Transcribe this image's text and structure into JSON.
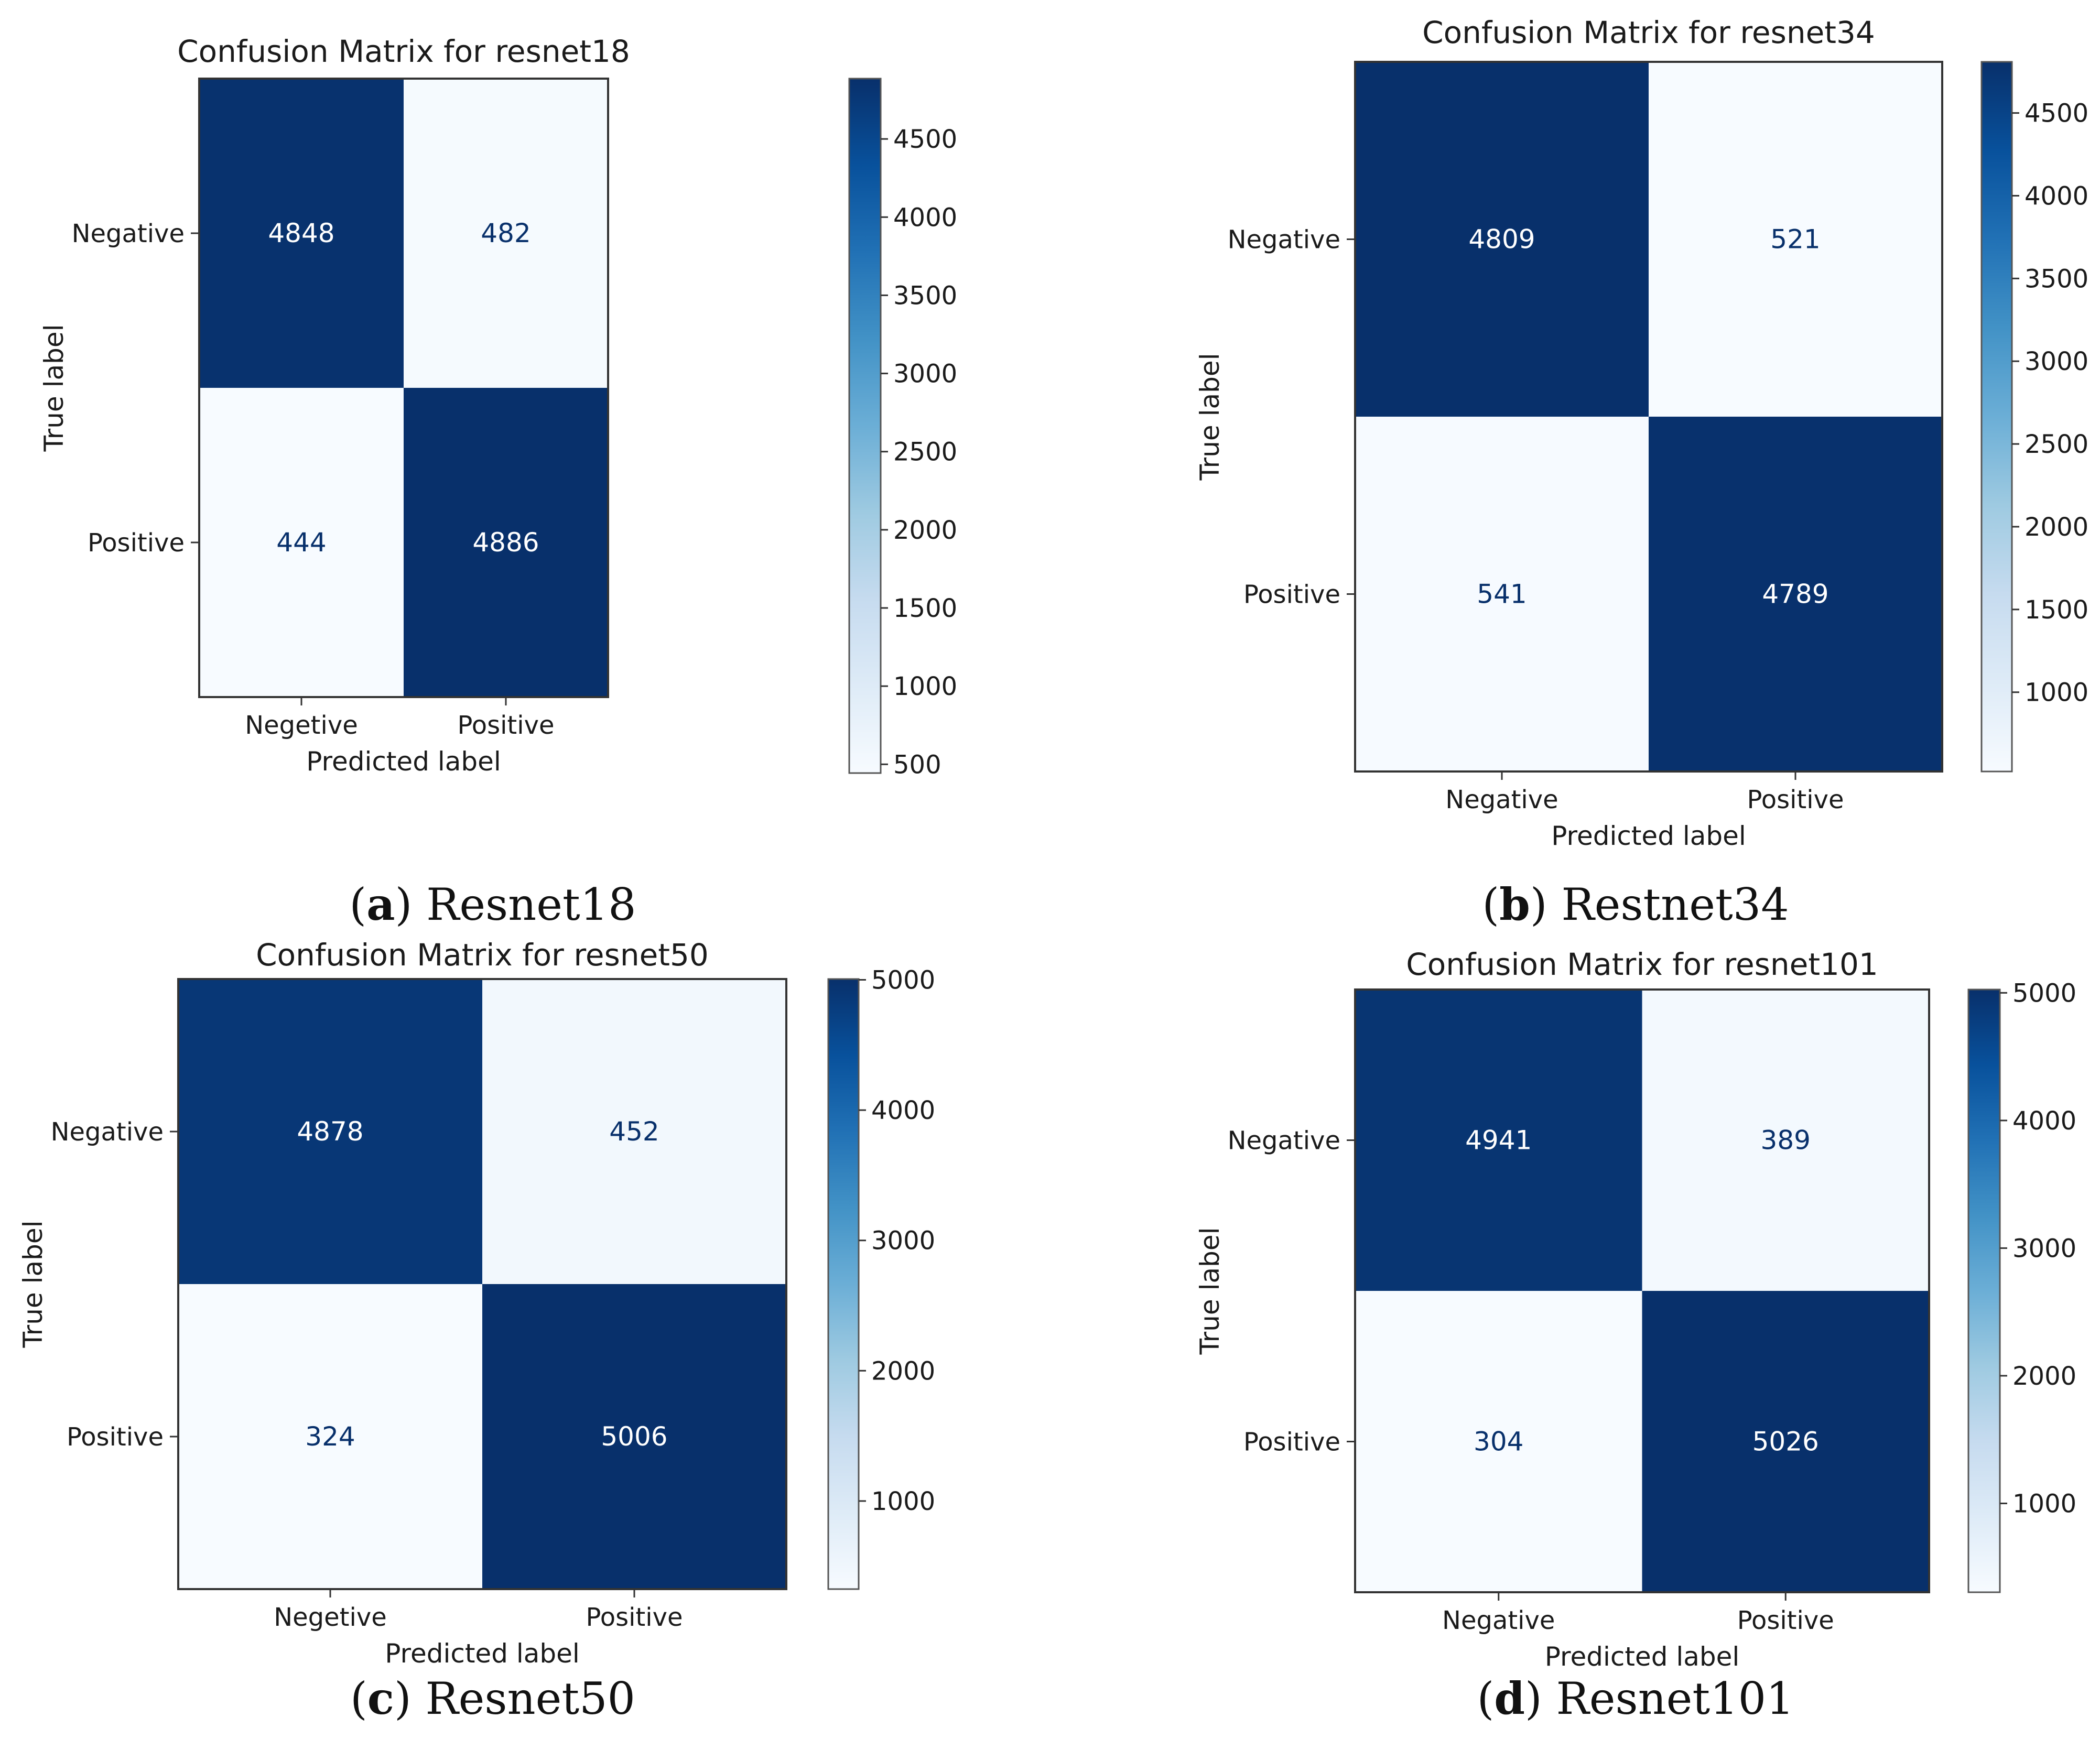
{
  "colors": {
    "dark": "#08306b",
    "light": "#f1f7fd",
    "text_on_dark": "#ffffff",
    "text_on_light": "#08306b",
    "colormap": [
      "#f7fbff",
      "#deebf7",
      "#c6dbef",
      "#9ecae1",
      "#6baed6",
      "#4292c6",
      "#2171b5",
      "#08519c",
      "#08306b"
    ]
  },
  "chart_data": [
    {
      "type": "heatmap",
      "title": "Confusion Matrix for resnet18",
      "xlabel": "Predicted label",
      "ylabel": "True label",
      "x_categories": [
        "Negetive",
        "Positive"
      ],
      "y_categories": [
        "Negative",
        "Positive"
      ],
      "values": [
        [
          4848,
          482
        ],
        [
          444,
          4886
        ]
      ],
      "cell_labels": [
        [
          "4848",
          "482"
        ],
        [
          "444",
          "4886"
        ]
      ],
      "colorbar": {
        "range": [
          444,
          4886
        ],
        "ticks": [
          "4500",
          "4000",
          "3500",
          "3000",
          "2500",
          "2000",
          "1500",
          "1000",
          "500"
        ],
        "tick_values": [
          4500,
          4000,
          3500,
          3000,
          2500,
          2000,
          1500,
          1000,
          500
        ]
      },
      "caption_letter": "a",
      "caption_text": "Resnet18"
    },
    {
      "type": "heatmap",
      "title": "Confusion Matrix for resnet34",
      "xlabel": "Predicted label",
      "ylabel": "True label",
      "x_categories": [
        "Negative",
        "Positive"
      ],
      "y_categories": [
        "Negative",
        "Positive"
      ],
      "values": [
        [
          4809,
          521
        ],
        [
          541,
          4789
        ]
      ],
      "cell_labels": [
        [
          "4809",
          "521"
        ],
        [
          "541",
          "4789"
        ]
      ],
      "colorbar": {
        "range": [
          521,
          4809
        ],
        "ticks": [
          "4500",
          "4000",
          "3500",
          "3000",
          "2500",
          "2000",
          "1500",
          "1000"
        ],
        "tick_values": [
          4500,
          4000,
          3500,
          3000,
          2500,
          2000,
          1500,
          1000
        ]
      },
      "caption_letter": "b",
      "caption_text": "Restnet34"
    },
    {
      "type": "heatmap",
      "title": "Confusion Matrix for resnet50",
      "xlabel": "Predicted label",
      "ylabel": "True label",
      "x_categories": [
        "Negetive",
        "Positive"
      ],
      "y_categories": [
        "Negative",
        "Positive"
      ],
      "values": [
        [
          4878,
          452
        ],
        [
          324,
          5006
        ]
      ],
      "cell_labels": [
        [
          "4878",
          "452"
        ],
        [
          "324",
          "5006"
        ]
      ],
      "colorbar": {
        "range": [
          324,
          5006
        ],
        "ticks": [
          "5000",
          "4000",
          "3000",
          "2000",
          "1000"
        ],
        "tick_values": [
          5000,
          4000,
          3000,
          2000,
          1000
        ]
      },
      "caption_letter": "c",
      "caption_text": "Resnet50"
    },
    {
      "type": "heatmap",
      "title": "Confusion Matrix for resnet101",
      "xlabel": "Predicted label",
      "ylabel": "True label",
      "x_categories": [
        "Negative",
        "Positive"
      ],
      "y_categories": [
        "Negative",
        "Positive"
      ],
      "values": [
        [
          4941,
          389
        ],
        [
          304,
          5026
        ]
      ],
      "cell_labels": [
        [
          "4941",
          "389"
        ],
        [
          "304",
          "5026"
        ]
      ],
      "colorbar": {
        "range": [
          304,
          5026
        ],
        "ticks": [
          "5000",
          "4000",
          "3000",
          "2000",
          "1000"
        ],
        "tick_values": [
          5000,
          4000,
          3000,
          2000,
          1000
        ]
      },
      "caption_letter": "d",
      "caption_text": "Resnet101"
    }
  ]
}
